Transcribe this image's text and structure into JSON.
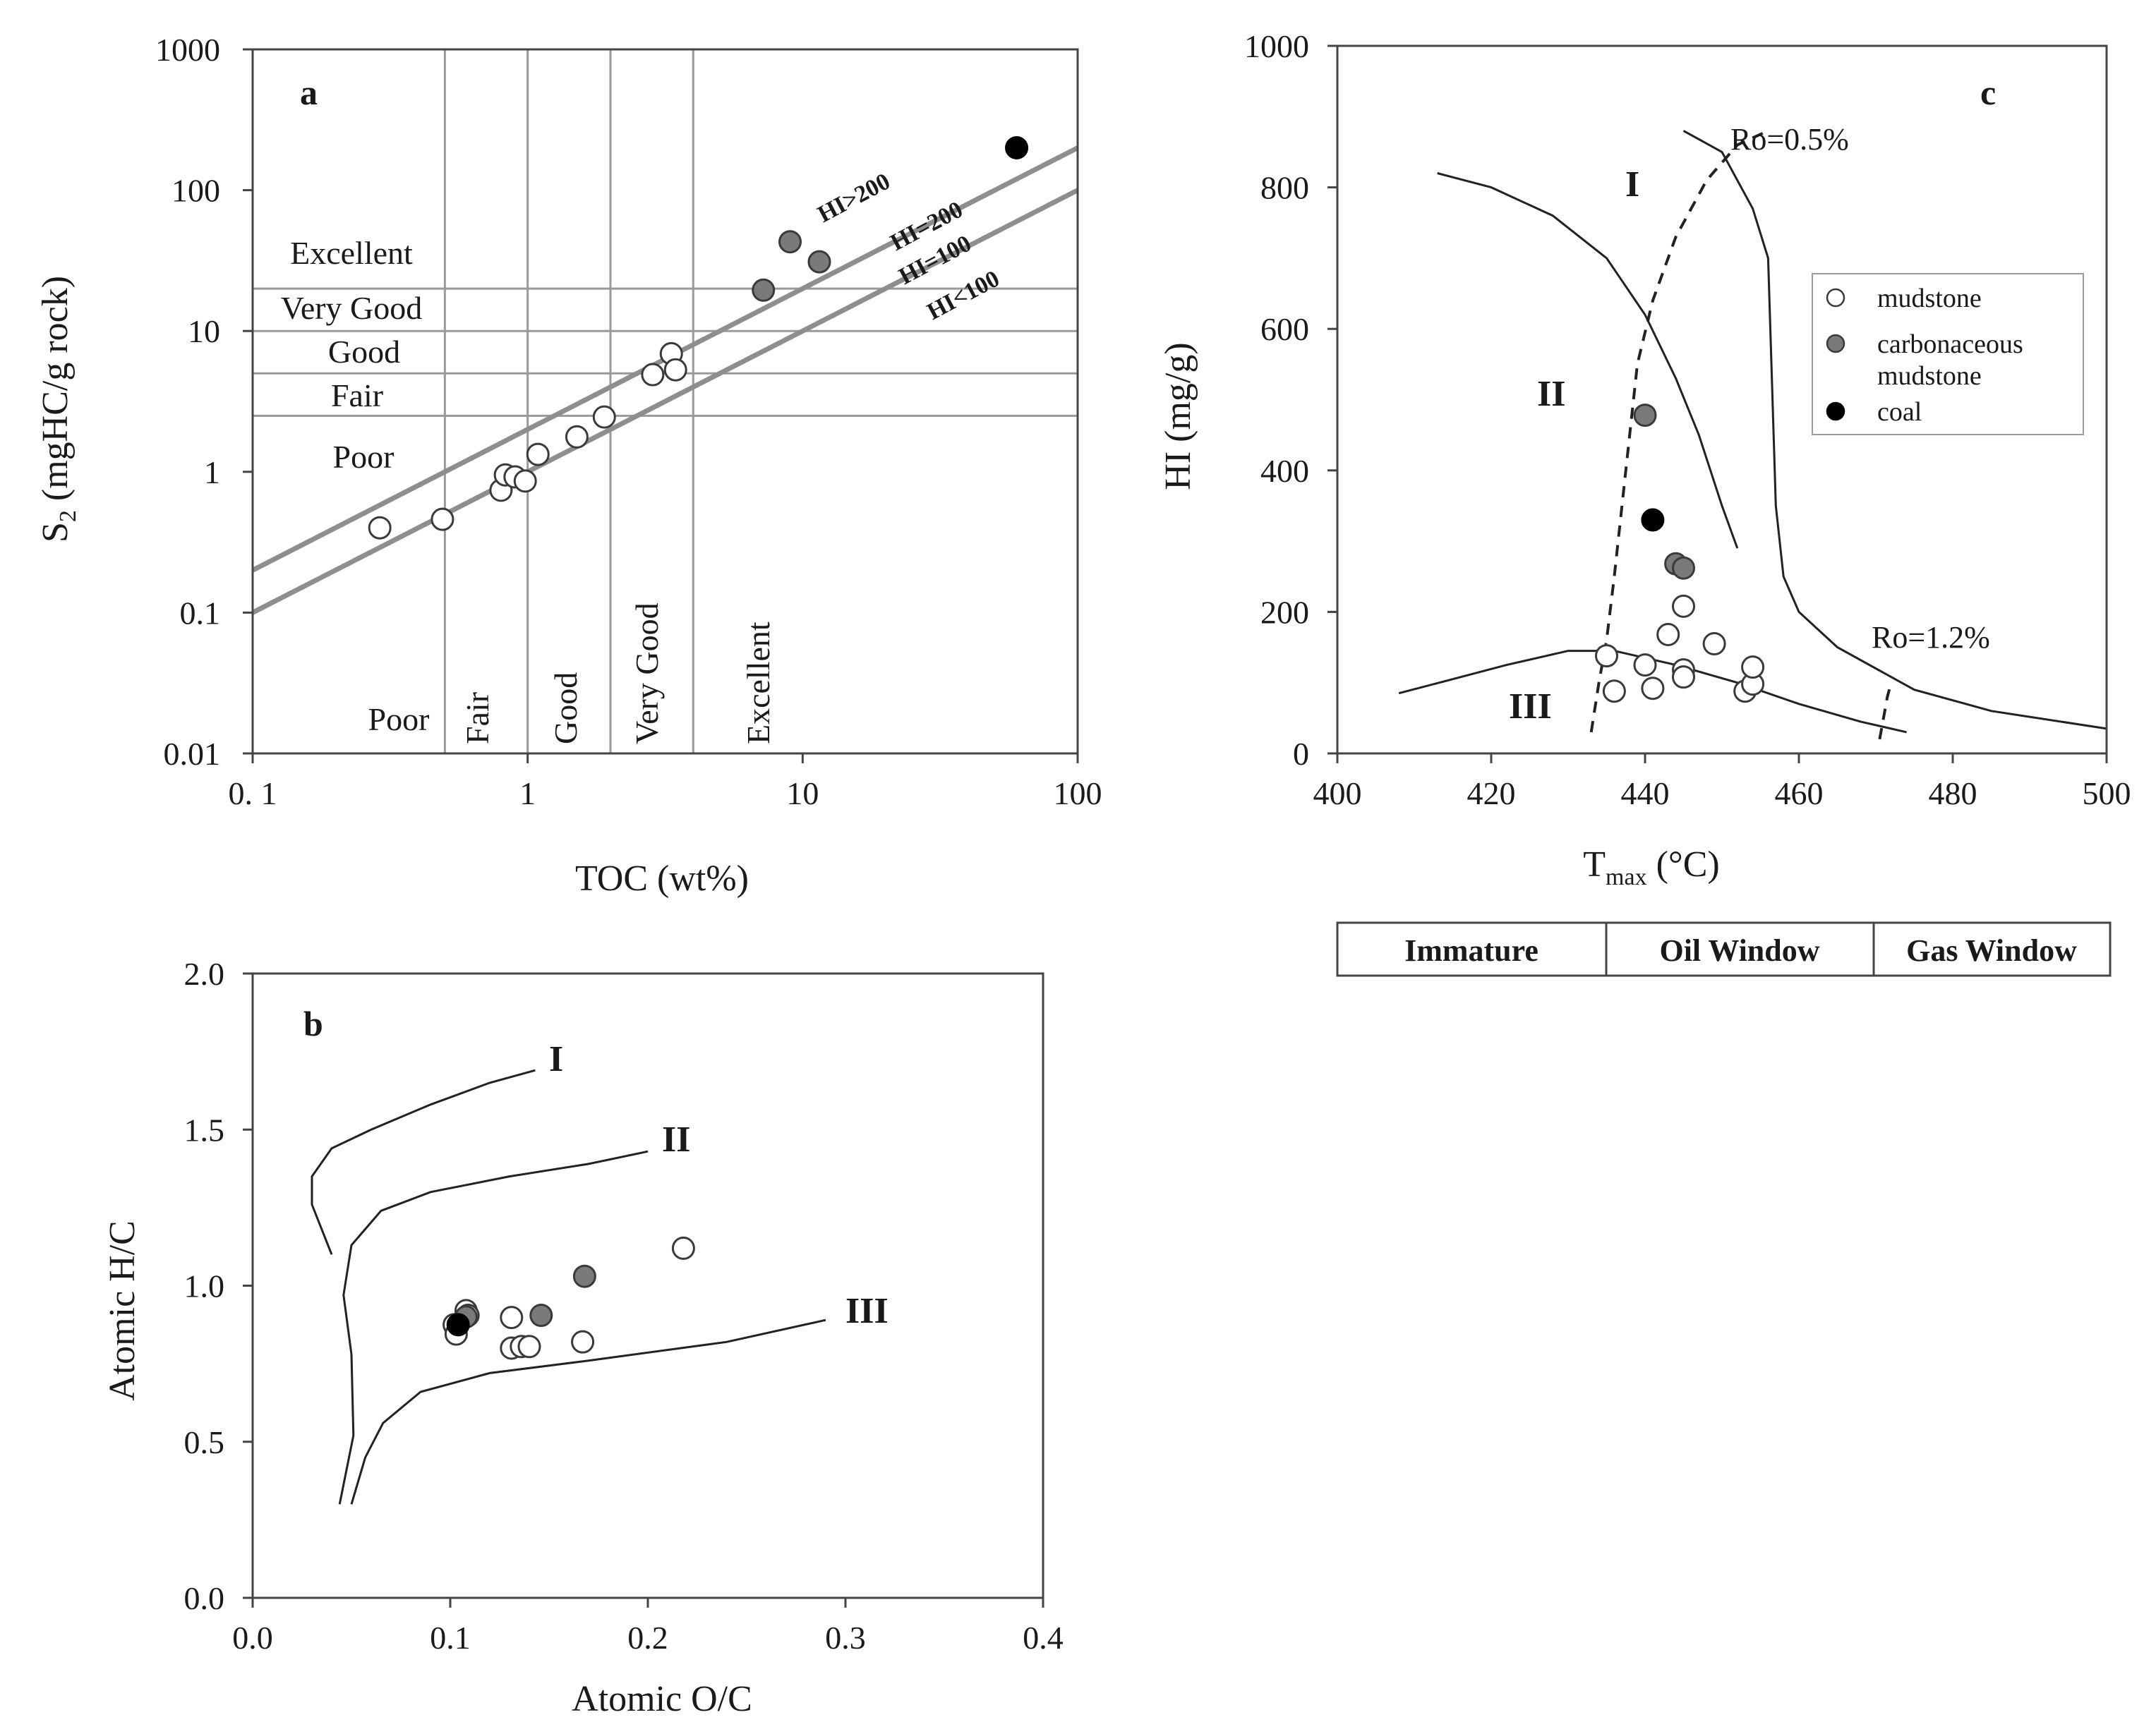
{
  "colors": {
    "mudstone": "#ffffff",
    "carbonaceous": "#7a7a7a",
    "coal": "#000000",
    "outline": "#3a3a3a",
    "gridline": "#9a9a9a",
    "hiline": "#8e8e8e"
  },
  "chart_data": [
    {
      "panel": "a",
      "type": "scatter",
      "xscale": "log",
      "yscale": "log",
      "xlabel": "TOC (wt%)",
      "ylabel_main": "S",
      "ylabel_sub": "2",
      "ylabel_rest": " (mgHC/g rock)",
      "xlim": [
        0.1,
        100
      ],
      "ylim": [
        0.01,
        1000
      ],
      "xticks": [
        0.1,
        1,
        10,
        100
      ],
      "xtick_labels": [
        "0. 1",
        "1",
        "10",
        "100"
      ],
      "yticks": [
        0.01,
        0.1,
        1,
        10,
        100,
        1000
      ],
      "ytick_labels": [
        "0.01",
        "0.1",
        "1",
        "10",
        "100",
        "1000"
      ],
      "toc_boundaries": [
        0.5,
        1,
        2,
        4
      ],
      "s2_boundaries": [
        2.5,
        5,
        10,
        20
      ],
      "s2_classes": [
        "Excellent",
        "Very Good",
        "Good",
        "Fair",
        "Poor"
      ],
      "toc_classes": [
        "Poor",
        "Fair",
        "Good",
        "Very Good",
        "Excellent"
      ],
      "hi_lines": [
        {
          "hi": 200,
          "label": "HI=200"
        },
        {
          "hi": 100,
          "label": "HI=100"
        }
      ],
      "hi_zone_labels": [
        "HI>200",
        "HI<100"
      ],
      "points": [
        {
          "toc": 0.29,
          "s2": 0.4,
          "type": "mudstone"
        },
        {
          "toc": 0.49,
          "s2": 0.46,
          "type": "mudstone"
        },
        {
          "toc": 0.8,
          "s2": 0.74,
          "type": "mudstone"
        },
        {
          "toc": 0.83,
          "s2": 0.95,
          "type": "mudstone"
        },
        {
          "toc": 0.9,
          "s2": 0.92,
          "type": "mudstone"
        },
        {
          "toc": 0.98,
          "s2": 0.86,
          "type": "mudstone"
        },
        {
          "toc": 1.09,
          "s2": 1.33,
          "type": "mudstone"
        },
        {
          "toc": 1.51,
          "s2": 1.77,
          "type": "mudstone"
        },
        {
          "toc": 1.9,
          "s2": 2.45,
          "type": "mudstone"
        },
        {
          "toc": 2.85,
          "s2": 4.9,
          "type": "mudstone"
        },
        {
          "toc": 3.33,
          "s2": 6.9,
          "type": "mudstone"
        },
        {
          "toc": 3.45,
          "s2": 5.3,
          "type": "mudstone"
        },
        {
          "toc": 7.2,
          "s2": 19.5,
          "type": "carbonaceous mudstone"
        },
        {
          "toc": 9.0,
          "s2": 43,
          "type": "carbonaceous mudstone"
        },
        {
          "toc": 11.5,
          "s2": 31,
          "type": "carbonaceous mudstone"
        },
        {
          "toc": 60,
          "s2": 200,
          "type": "coal"
        }
      ]
    },
    {
      "panel": "b",
      "type": "scatter",
      "xlabel": "Atomic O/C",
      "ylabel": "Atomic H/C",
      "xlim": [
        0,
        0.4
      ],
      "ylim": [
        0,
        2.0
      ],
      "xticks": [
        0,
        0.1,
        0.2,
        0.3,
        0.4
      ],
      "xtick_labels": [
        "0.0",
        "0.1",
        "0.2",
        "0.3",
        "0.4"
      ],
      "yticks": [
        0,
        0.5,
        1.0,
        1.5,
        2.0
      ],
      "ytick_labels": [
        "0.0",
        "0.5",
        "1.0",
        "1.5",
        "2.0"
      ],
      "curves": [
        {
          "label": "I",
          "points": [
            [
              0.04,
              1.1
            ],
            [
              0.03,
              1.26
            ],
            [
              0.03,
              1.35
            ],
            [
              0.04,
              1.44
            ],
            [
              0.06,
              1.5
            ],
            [
              0.09,
              1.58
            ],
            [
              0.12,
              1.65
            ],
            [
              0.143,
              1.69
            ]
          ]
        },
        {
          "label": "II",
          "points": [
            [
              0.044,
              0.3
            ],
            [
              0.051,
              0.52
            ],
            [
              0.05,
              0.78
            ],
            [
              0.046,
              0.97
            ],
            [
              0.05,
              1.13
            ],
            [
              0.065,
              1.24
            ],
            [
              0.09,
              1.3
            ],
            [
              0.13,
              1.35
            ],
            [
              0.17,
              1.39
            ],
            [
              0.2,
              1.43
            ]
          ]
        },
        {
          "label": "III",
          "points": [
            [
              0.05,
              0.3
            ],
            [
              0.057,
              0.45
            ],
            [
              0.066,
              0.56
            ],
            [
              0.085,
              0.66
            ],
            [
              0.12,
              0.72
            ],
            [
              0.17,
              0.76
            ],
            [
              0.24,
              0.82
            ],
            [
              0.29,
              0.89
            ]
          ]
        }
      ],
      "points": [
        {
          "oc": 0.102,
          "hc": 0.875,
          "type": "mudstone"
        },
        {
          "oc": 0.103,
          "hc": 0.845,
          "type": "mudstone"
        },
        {
          "oc": 0.108,
          "hc": 0.92,
          "type": "mudstone"
        },
        {
          "oc": 0.109,
          "hc": 0.905,
          "type": "mudstone"
        },
        {
          "oc": 0.131,
          "hc": 0.898,
          "type": "mudstone"
        },
        {
          "oc": 0.131,
          "hc": 0.8,
          "type": "mudstone"
        },
        {
          "oc": 0.136,
          "hc": 0.805,
          "type": "mudstone"
        },
        {
          "oc": 0.14,
          "hc": 0.805,
          "type": "mudstone"
        },
        {
          "oc": 0.167,
          "hc": 0.82,
          "type": "mudstone"
        },
        {
          "oc": 0.218,
          "hc": 1.12,
          "type": "mudstone"
        },
        {
          "oc": 0.146,
          "hc": 0.905,
          "type": "carbonaceous mudstone"
        },
        {
          "oc": 0.168,
          "hc": 1.03,
          "type": "carbonaceous mudstone"
        },
        {
          "oc": 0.108,
          "hc": 0.9,
          "type": "carbonaceous mudstone"
        },
        {
          "oc": 0.104,
          "hc": 0.875,
          "type": "coal"
        }
      ]
    },
    {
      "panel": "c",
      "type": "scatter",
      "xlabel_main": "T",
      "xlabel_sub": "max",
      "xlabel_rest": " (°C)",
      "ylabel": "HI (mg/g)",
      "xlim": [
        400,
        500
      ],
      "ylim": [
        0,
        1000
      ],
      "xticks": [
        400,
        420,
        440,
        460,
        480,
        500
      ],
      "xtick_labels": [
        "400",
        "420",
        "440",
        "460",
        "480",
        "500"
      ],
      "yticks": [
        0,
        200,
        400,
        600,
        800,
        1000
      ],
      "ytick_labels": [
        "0",
        "200",
        "400",
        "600",
        "800",
        "1000"
      ],
      "curves": [
        {
          "label": "I",
          "points": [
            [
              445,
              880
            ],
            [
              450,
              850
            ],
            [
              454,
              770
            ],
            [
              456,
              700
            ],
            [
              457,
              350
            ],
            [
              458,
              250
            ],
            [
              460,
              200
            ],
            [
              465,
              150
            ],
            [
              475,
              90
            ],
            [
              485,
              60
            ],
            [
              500,
              35
            ]
          ]
        },
        {
          "label": "II",
          "points": [
            [
              413,
              820
            ],
            [
              420,
              800
            ],
            [
              428,
              760
            ],
            [
              435,
              700
            ],
            [
              440,
              620
            ],
            [
              444,
              530
            ],
            [
              447,
              450
            ],
            [
              450,
              350
            ],
            [
              452,
              290
            ]
          ]
        },
        {
          "label": "III",
          "points": [
            [
              408,
              85
            ],
            [
              415,
              105
            ],
            [
              422,
              125
            ],
            [
              430,
              145
            ],
            [
              436,
              145
            ],
            [
              444,
              125
            ],
            [
              452,
              100
            ],
            [
              460,
              70
            ],
            [
              468,
              45
            ],
            [
              474,
              30
            ]
          ]
        }
      ],
      "iso_lines": [
        {
          "label": "Ro=0.5%",
          "points": [
            [
              433,
              30
            ],
            [
              434,
              100
            ],
            [
              435,
              160
            ],
            [
              436,
              250
            ],
            [
              437,
              350
            ],
            [
              438,
              450
            ],
            [
              439,
              550
            ],
            [
              441,
              640
            ],
            [
              444,
              730
            ],
            [
              448,
              810
            ],
            [
              452,
              860
            ],
            [
              456,
              880
            ]
          ]
        },
        {
          "label": "Ro=1.2%",
          "points": [
            [
              470.5,
              20
            ],
            [
              471,
              50
            ],
            [
              471.5,
              80
            ],
            [
              472,
              100
            ]
          ]
        }
      ],
      "points": [
        {
          "tmax": 435,
          "hi": 138,
          "type": "mudstone"
        },
        {
          "tmax": 436,
          "hi": 88,
          "type": "mudstone"
        },
        {
          "tmax": 440,
          "hi": 125,
          "type": "mudstone"
        },
        {
          "tmax": 441,
          "hi": 92,
          "type": "mudstone"
        },
        {
          "tmax": 443,
          "hi": 168,
          "type": "mudstone"
        },
        {
          "tmax": 445,
          "hi": 208,
          "type": "mudstone"
        },
        {
          "tmax": 445,
          "hi": 118,
          "type": "mudstone"
        },
        {
          "tmax": 445,
          "hi": 108,
          "type": "mudstone"
        },
        {
          "tmax": 449,
          "hi": 155,
          "type": "mudstone"
        },
        {
          "tmax": 453,
          "hi": 88,
          "type": "mudstone"
        },
        {
          "tmax": 454,
          "hi": 98,
          "type": "mudstone"
        },
        {
          "tmax": 454,
          "hi": 122,
          "type": "mudstone"
        },
        {
          "tmax": 440,
          "hi": 478,
          "type": "carbonaceous mudstone"
        },
        {
          "tmax": 444,
          "hi": 268,
          "type": "carbonaceous mudstone"
        },
        {
          "tmax": 445,
          "hi": 262,
          "type": "carbonaceous mudstone"
        },
        {
          "tmax": 441,
          "hi": 330,
          "type": "coal"
        }
      ],
      "legend": [
        {
          "type": "mudstone",
          "label": "mudstone"
        },
        {
          "type": "carbonaceous mudstone",
          "label_line1": "carbonaceous",
          "label_line2": "mudstone"
        },
        {
          "type": "coal",
          "label": "coal"
        }
      ],
      "windows": [
        "Immature",
        "Oil Window",
        "Gas Window"
      ]
    }
  ]
}
